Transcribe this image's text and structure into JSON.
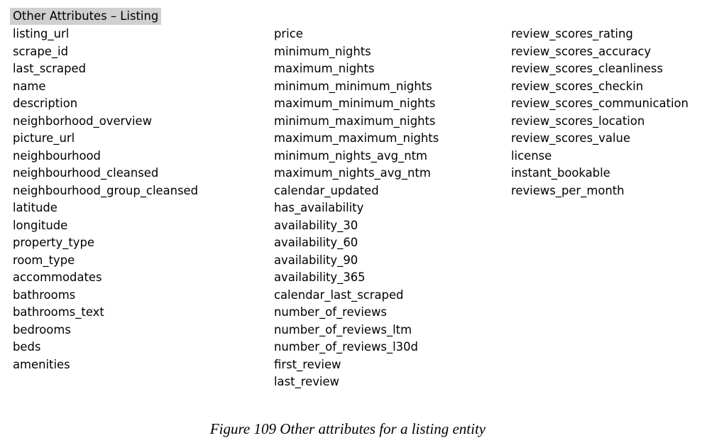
{
  "heading": "Other Attributes – Listing",
  "columns": [
    {
      "items": [
        "listing_url",
        "scrape_id",
        "last_scraped",
        "name",
        "description",
        "neighborhood_overview",
        "picture_url",
        "neighbourhood",
        "neighbourhood_cleansed",
        "neighbourhood_group_cleansed",
        "latitude",
        "longitude",
        "property_type",
        "room_type",
        "accommodates",
        "bathrooms",
        "bathrooms_text",
        "bedrooms",
        "beds",
        "amenities"
      ]
    },
    {
      "items": [
        "price",
        "minimum_nights",
        "maximum_nights",
        "minimum_minimum_nights",
        "maximum_minimum_nights",
        "minimum_maximum_nights",
        "maximum_maximum_nights",
        "minimum_nights_avg_ntm",
        "maximum_nights_avg_ntm",
        "calendar_updated",
        "has_availability",
        "availability_30",
        "availability_60",
        "availability_90",
        "availability_365",
        "calendar_last_scraped",
        "number_of_reviews",
        "number_of_reviews_ltm",
        "number_of_reviews_l30d",
        "first_review",
        "last_review"
      ]
    },
    {
      "items": [
        "review_scores_rating",
        "review_scores_accuracy",
        "review_scores_cleanliness",
        "review_scores_checkin",
        "review_scores_communication",
        "review_scores_location",
        "review_scores_value",
        "license",
        "instant_bookable",
        "reviews_per_month"
      ]
    }
  ],
  "caption": "Figure 109 Other attributes for a listing entity"
}
